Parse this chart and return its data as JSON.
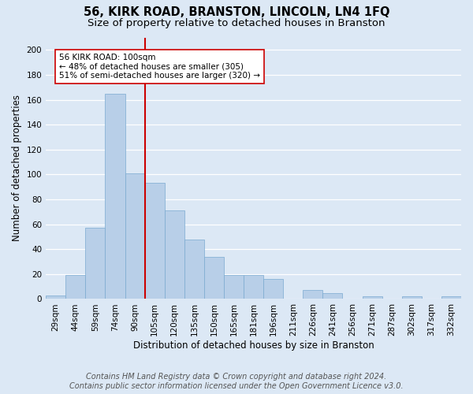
{
  "title": "56, KIRK ROAD, BRANSTON, LINCOLN, LN4 1FQ",
  "subtitle": "Size of property relative to detached houses in Branston",
  "xlabel": "Distribution of detached houses by size in Branston",
  "ylabel": "Number of detached properties",
  "bar_labels": [
    "29sqm",
    "44sqm",
    "59sqm",
    "74sqm",
    "90sqm",
    "105sqm",
    "120sqm",
    "135sqm",
    "150sqm",
    "165sqm",
    "181sqm",
    "196sqm",
    "211sqm",
    "226sqm",
    "241sqm",
    "256sqm",
    "271sqm",
    "287sqm",
    "302sqm",
    "317sqm",
    "332sqm"
  ],
  "bar_values": [
    3,
    19,
    57,
    165,
    101,
    93,
    71,
    48,
    34,
    19,
    19,
    16,
    0,
    7,
    5,
    0,
    2,
    0,
    2,
    0,
    2
  ],
  "bar_color": "#b8cfe8",
  "bar_edge_color": "#7aaad0",
  "ylim": [
    0,
    210
  ],
  "yticks": [
    0,
    20,
    40,
    60,
    80,
    100,
    120,
    140,
    160,
    180,
    200
  ],
  "vline_color": "#cc0000",
  "annotation_text": "56 KIRK ROAD: 100sqm\n← 48% of detached houses are smaller (305)\n51% of semi-detached houses are larger (320) →",
  "annotation_box_color": "#ffffff",
  "annotation_box_edge": "#cc0000",
  "footer_line1": "Contains HM Land Registry data © Crown copyright and database right 2024.",
  "footer_line2": "Contains public sector information licensed under the Open Government Licence v3.0.",
  "background_color": "#dce8f5",
  "grid_color": "#ffffff",
  "title_fontsize": 10.5,
  "subtitle_fontsize": 9.5,
  "axis_label_fontsize": 8.5,
  "tick_fontsize": 7.5,
  "annotation_fontsize": 7.5,
  "footer_fontsize": 7
}
